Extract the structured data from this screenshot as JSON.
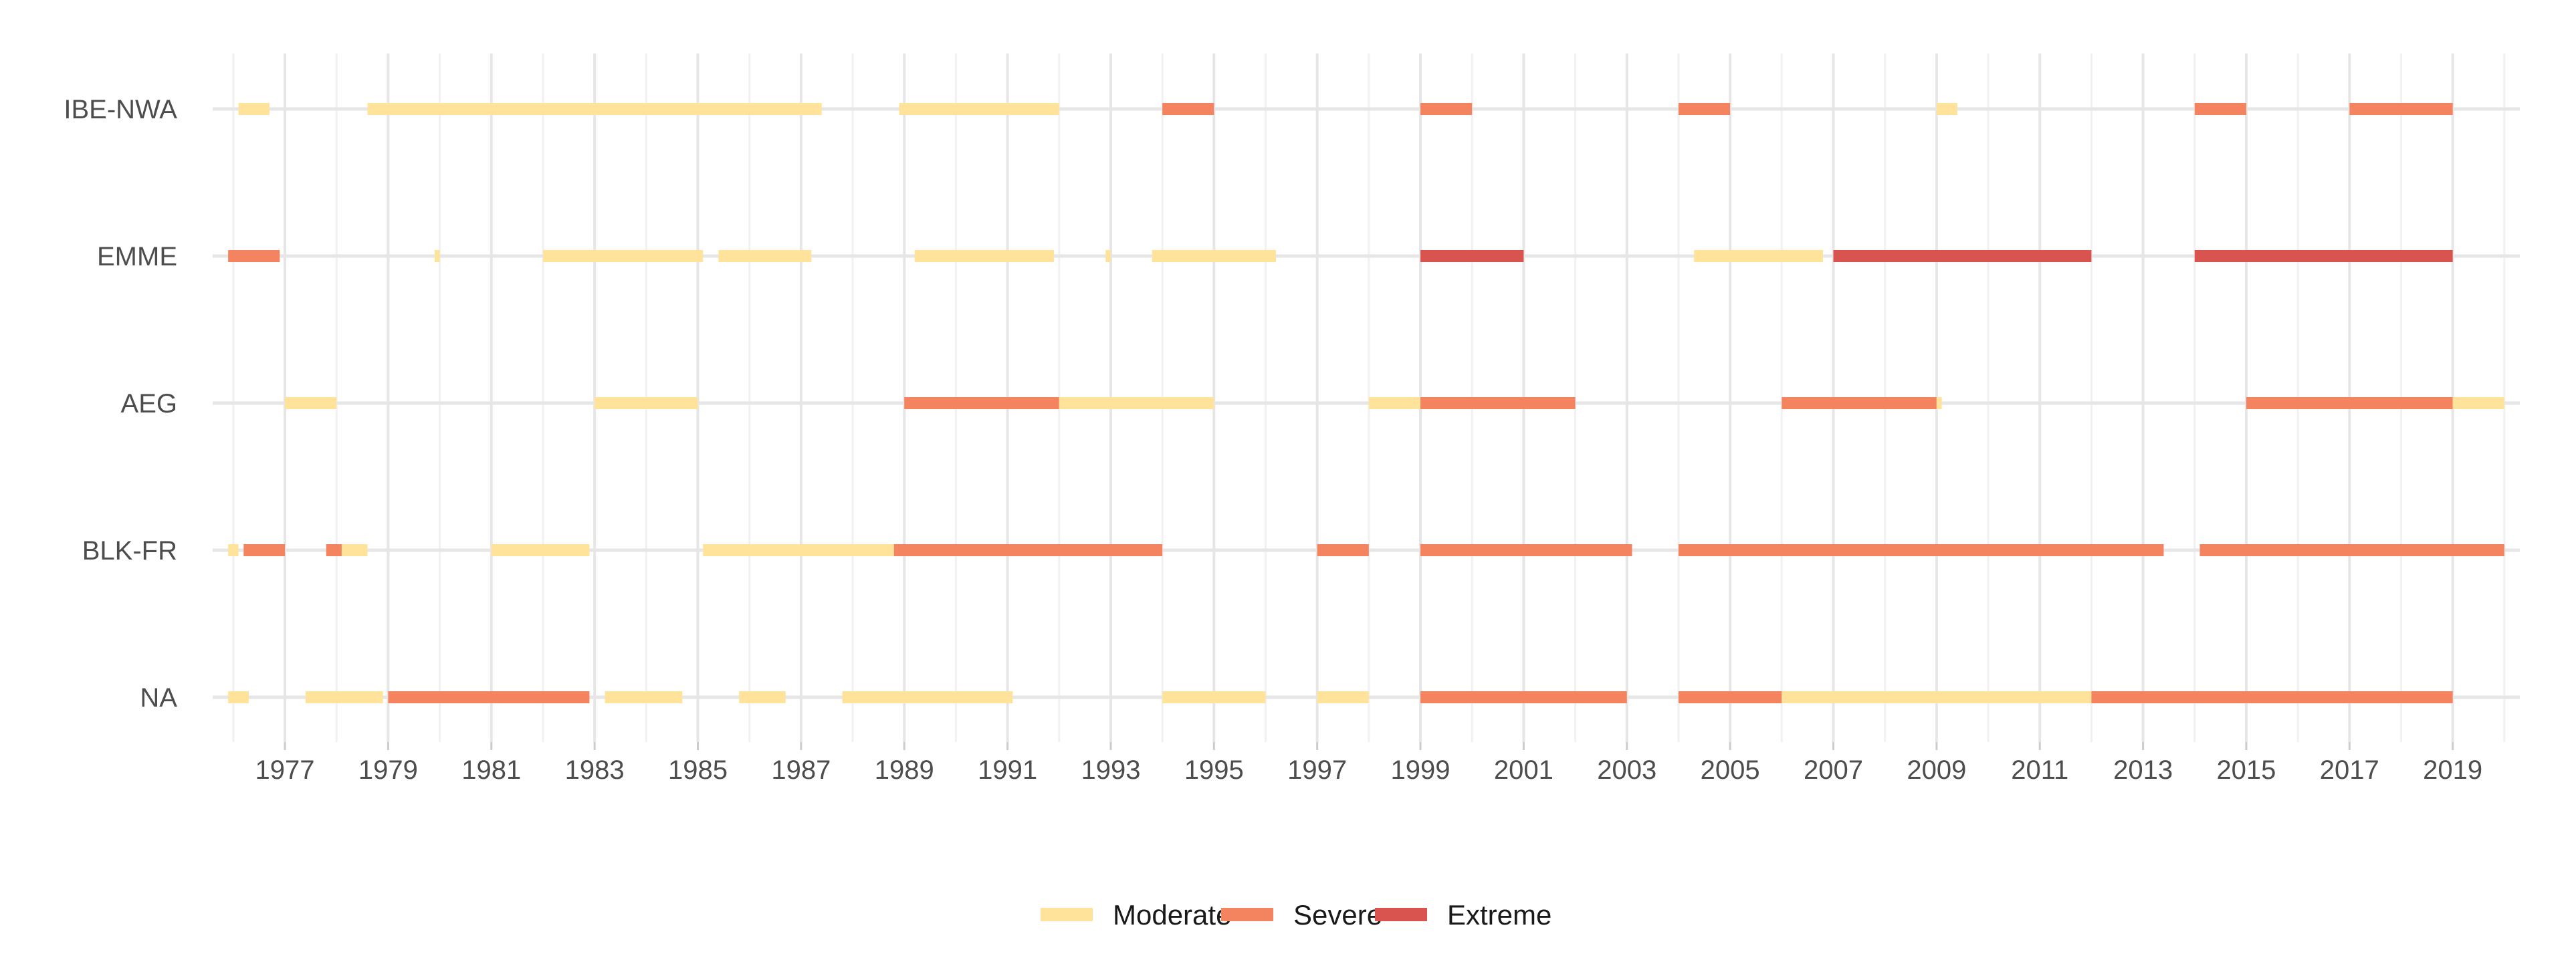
{
  "chart_data": {
    "type": "timeline",
    "title": "",
    "xlabel": "",
    "ylabel": "",
    "xlim": [
      1975.6,
      2020.3
    ],
    "x_ticks": [
      "1977",
      "1979",
      "1981",
      "1983",
      "1985",
      "1987",
      "1989",
      "1991",
      "1993",
      "1995",
      "1997",
      "1999",
      "2001",
      "2003",
      "2005",
      "2007",
      "2009",
      "2011",
      "2013",
      "2015",
      "2017",
      "2019"
    ],
    "grid": true,
    "legend_position": "bottom",
    "categories": [
      "IBE-NWA",
      "EMME",
      "AEG",
      "BLK-FR",
      "NA"
    ],
    "legend": [
      {
        "level": "moderate",
        "label": "Moderate",
        "color": "#FFE39A"
      },
      {
        "level": "severe",
        "label": "Severe",
        "color": "#F4845F"
      },
      {
        "level": "extreme",
        "label": "Extreme",
        "color": "#D9534F"
      }
    ],
    "series": [
      {
        "region": "IBE-NWA",
        "events": [
          {
            "start": 1976.1,
            "end": 1976.7,
            "level": "moderate"
          },
          {
            "start": 1978.6,
            "end": 1987.4,
            "level": "moderate"
          },
          {
            "start": 1988.9,
            "end": 1992.0,
            "level": "moderate"
          },
          {
            "start": 1994.0,
            "end": 1995.0,
            "level": "severe"
          },
          {
            "start": 1999.0,
            "end": 2000.0,
            "level": "severe"
          },
          {
            "start": 2004.0,
            "end": 2005.0,
            "level": "severe"
          },
          {
            "start": 2009.0,
            "end": 2009.4,
            "level": "moderate"
          },
          {
            "start": 2014.0,
            "end": 2015.0,
            "level": "severe"
          },
          {
            "start": 2017.0,
            "end": 2019.0,
            "level": "severe"
          }
        ]
      },
      {
        "region": "EMME",
        "events": [
          {
            "start": 1975.9,
            "end": 1976.9,
            "level": "severe"
          },
          {
            "start": 1979.9,
            "end": 1980.0,
            "level": "moderate"
          },
          {
            "start": 1982.0,
            "end": 1985.1,
            "level": "moderate"
          },
          {
            "start": 1985.4,
            "end": 1987.2,
            "level": "moderate"
          },
          {
            "start": 1989.2,
            "end": 1991.9,
            "level": "moderate"
          },
          {
            "start": 1992.9,
            "end": 1993.0,
            "level": "moderate"
          },
          {
            "start": 1993.8,
            "end": 1996.2,
            "level": "moderate"
          },
          {
            "start": 1999.0,
            "end": 2001.0,
            "level": "extreme"
          },
          {
            "start": 2004.3,
            "end": 2006.8,
            "level": "moderate"
          },
          {
            "start": 2007.0,
            "end": 2012.0,
            "level": "extreme"
          },
          {
            "start": 2014.0,
            "end": 2019.0,
            "level": "extreme"
          }
        ]
      },
      {
        "region": "AEG",
        "events": [
          {
            "start": 1977.0,
            "end": 1978.0,
            "level": "moderate"
          },
          {
            "start": 1983.0,
            "end": 1985.0,
            "level": "moderate"
          },
          {
            "start": 1989.0,
            "end": 1992.0,
            "level": "severe"
          },
          {
            "start": 1992.0,
            "end": 1995.0,
            "level": "moderate"
          },
          {
            "start": 1998.0,
            "end": 1999.0,
            "level": "moderate"
          },
          {
            "start": 1999.0,
            "end": 2002.0,
            "level": "severe"
          },
          {
            "start": 2006.0,
            "end": 2009.0,
            "level": "severe"
          },
          {
            "start": 2009.0,
            "end": 2009.1,
            "level": "moderate"
          },
          {
            "start": 2015.0,
            "end": 2019.0,
            "level": "severe"
          },
          {
            "start": 2019.0,
            "end": 2020.0,
            "level": "moderate"
          }
        ]
      },
      {
        "region": "BLK-FR",
        "events": [
          {
            "start": 1975.9,
            "end": 1976.1,
            "level": "moderate"
          },
          {
            "start": 1976.2,
            "end": 1977.0,
            "level": "severe"
          },
          {
            "start": 1977.8,
            "end": 1978.1,
            "level": "severe"
          },
          {
            "start": 1978.1,
            "end": 1978.6,
            "level": "moderate"
          },
          {
            "start": 1981.0,
            "end": 1982.9,
            "level": "moderate"
          },
          {
            "start": 1985.1,
            "end": 1988.8,
            "level": "moderate"
          },
          {
            "start": 1988.8,
            "end": 1994.0,
            "level": "severe"
          },
          {
            "start": 1997.0,
            "end": 1998.0,
            "level": "severe"
          },
          {
            "start": 1999.0,
            "end": 2003.1,
            "level": "severe"
          },
          {
            "start": 2004.0,
            "end": 2013.4,
            "level": "severe"
          },
          {
            "start": 2014.1,
            "end": 2020.0,
            "level": "severe"
          }
        ]
      },
      {
        "region": "NA",
        "events": [
          {
            "start": 1975.9,
            "end": 1976.3,
            "level": "moderate"
          },
          {
            "start": 1977.4,
            "end": 1978.9,
            "level": "moderate"
          },
          {
            "start": 1979.0,
            "end": 1982.9,
            "level": "severe"
          },
          {
            "start": 1983.2,
            "end": 1984.7,
            "level": "moderate"
          },
          {
            "start": 1985.8,
            "end": 1986.7,
            "level": "moderate"
          },
          {
            "start": 1987.8,
            "end": 1991.1,
            "level": "moderate"
          },
          {
            "start": 1994.0,
            "end": 1996.0,
            "level": "moderate"
          },
          {
            "start": 1997.0,
            "end": 1998.0,
            "level": "moderate"
          },
          {
            "start": 1999.0,
            "end": 2003.0,
            "level": "severe"
          },
          {
            "start": 2004.0,
            "end": 2006.0,
            "level": "severe"
          },
          {
            "start": 2006.0,
            "end": 2012.0,
            "level": "moderate"
          },
          {
            "start": 2012.0,
            "end": 2019.0,
            "level": "severe"
          }
        ]
      }
    ]
  }
}
